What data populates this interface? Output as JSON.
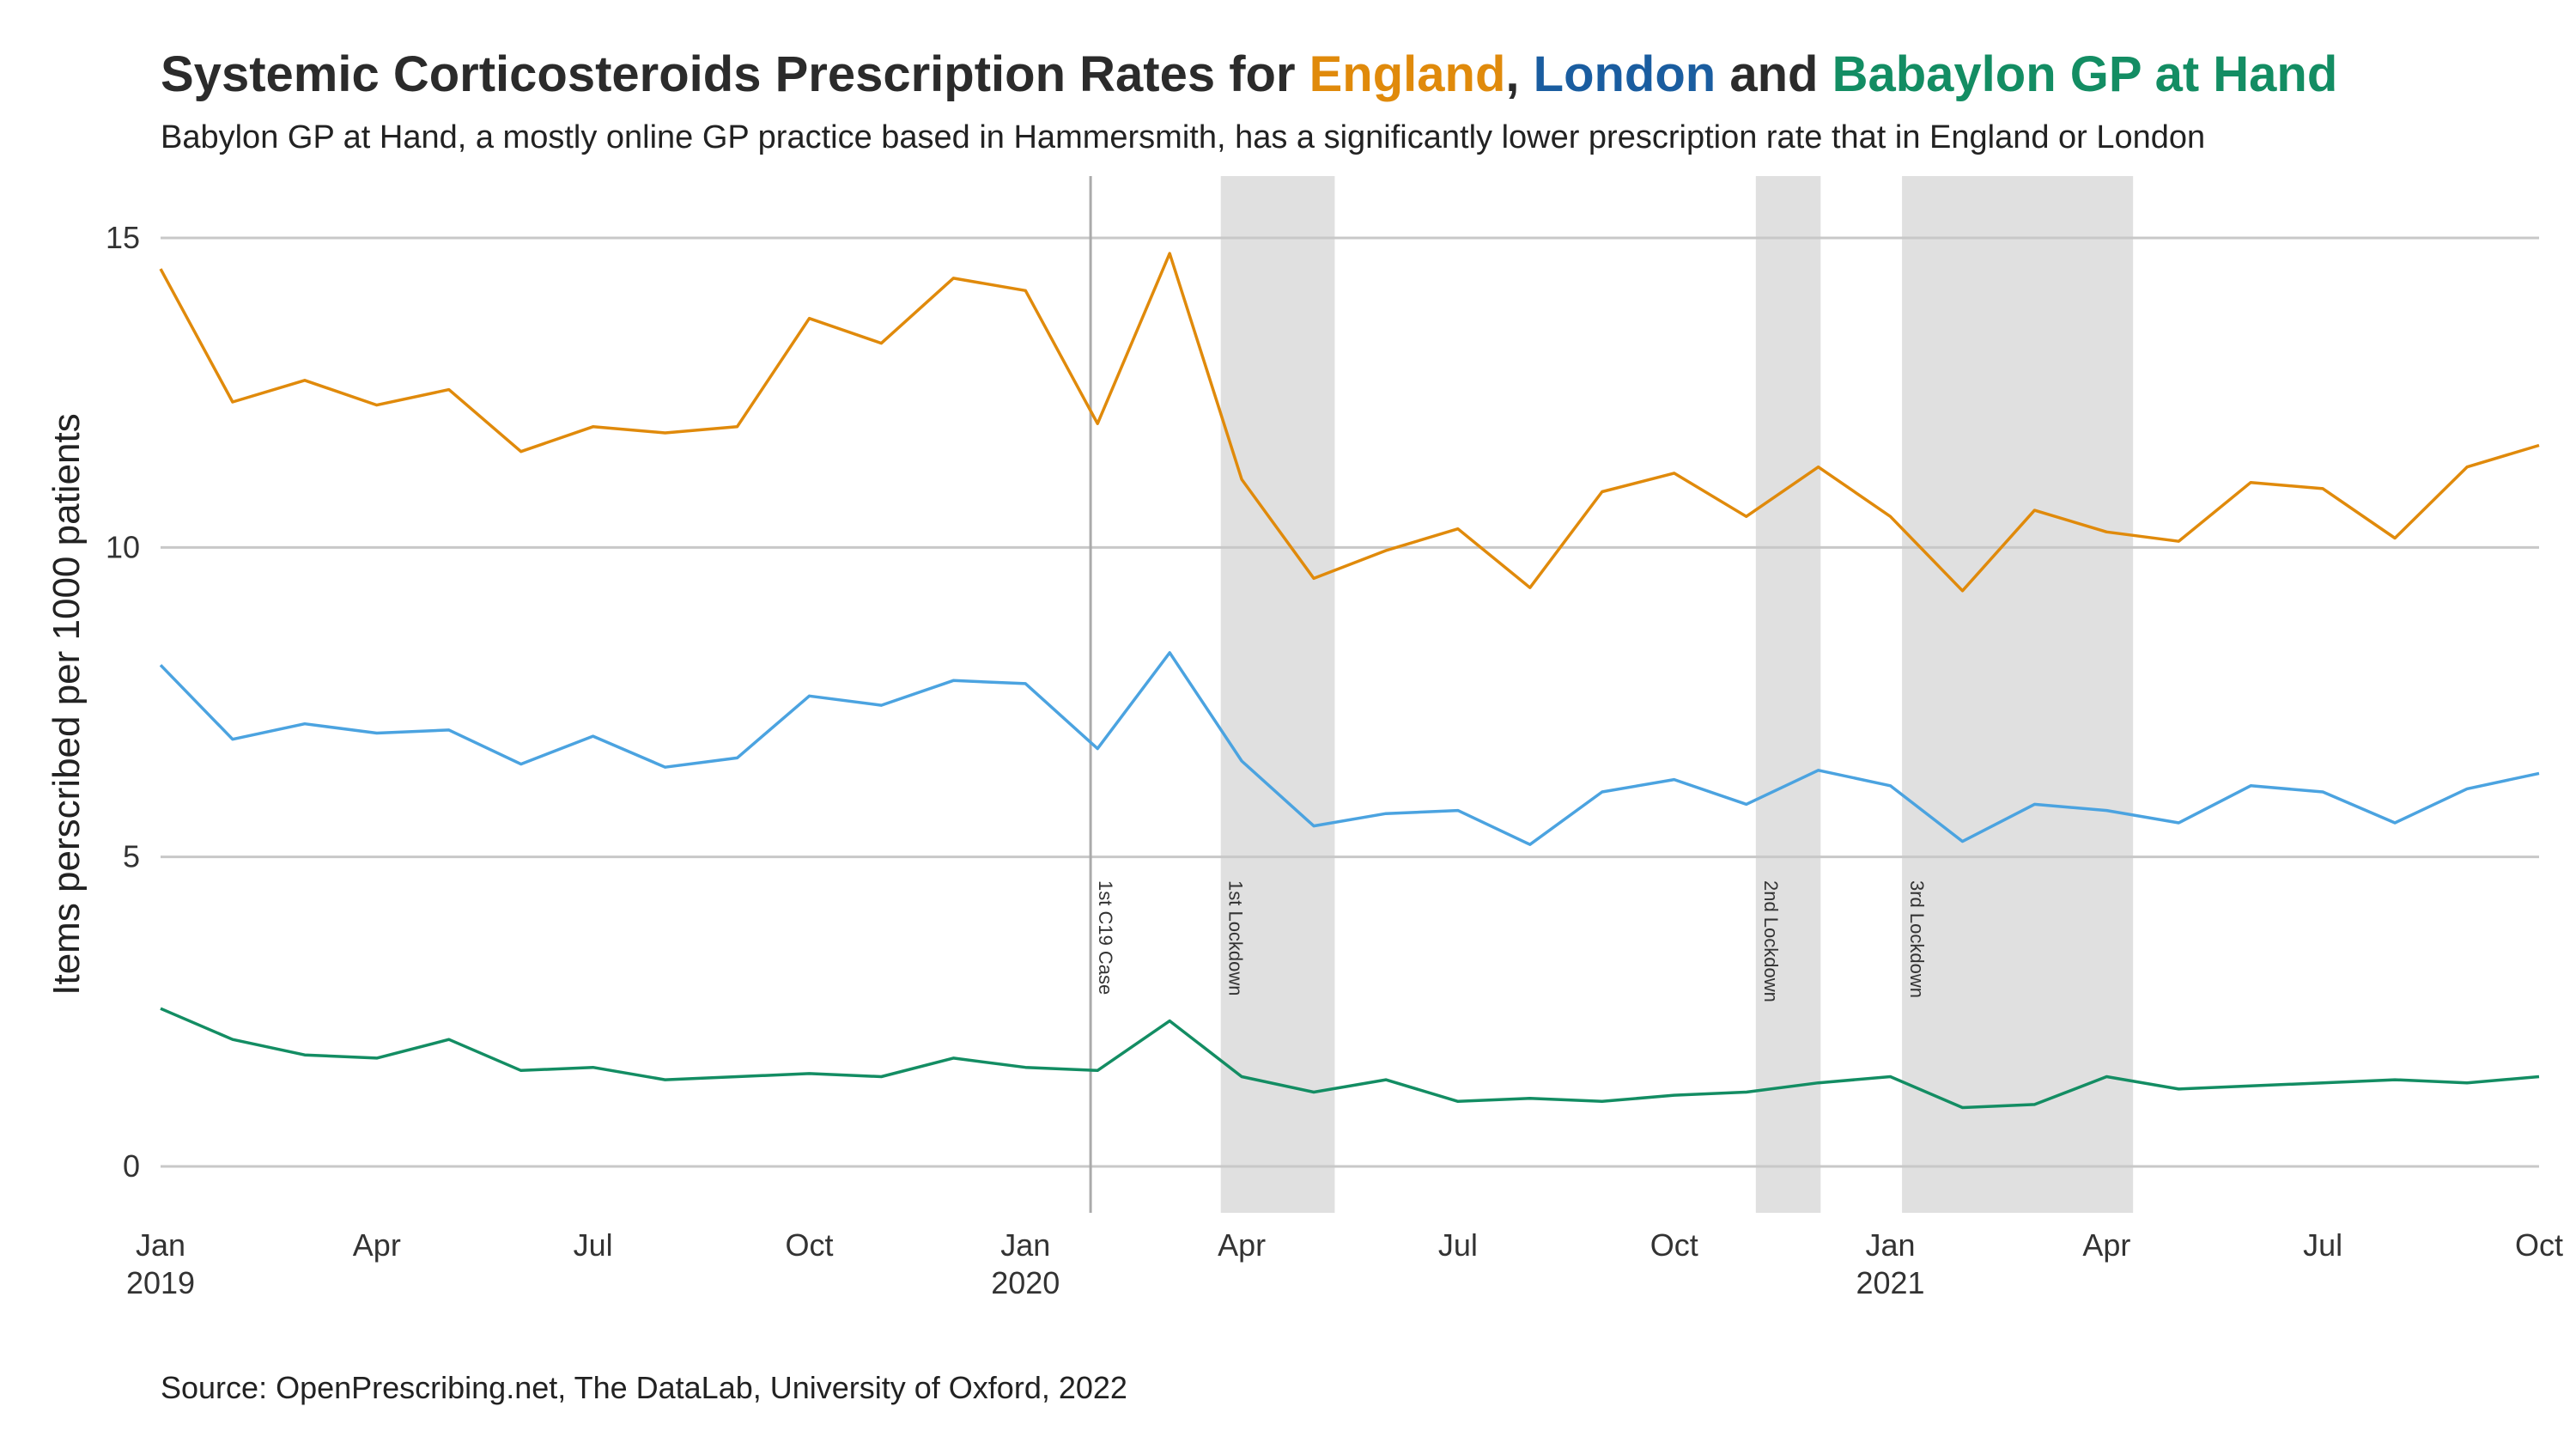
{
  "chart_data": {
    "type": "line",
    "title_parts": [
      {
        "text": "Systemic Corticosteroids Prescription Rates for ",
        "color": "#2b2b2b"
      },
      {
        "text": "England",
        "color": "#E08A0B"
      },
      {
        "text": ", ",
        "color": "#2b2b2b"
      },
      {
        "text": "London",
        "color": "#1A5DA0"
      },
      {
        "text": " and ",
        "color": "#2b2b2b"
      },
      {
        "text": "Babaylon GP at Hand",
        "color": "#138D63"
      }
    ],
    "subtitle": "Babylon GP at Hand, a mostly online GP practice based in Hammersmith, has a significantly lower prescription rate that in England or London",
    "ylabel": "Items perscribed per 1000 patients",
    "xlabel": "",
    "caption": "Source: OpenPrescribing.net, The DataLab, University of Oxford, 2022",
    "x_range": [
      "2019-01",
      "2021-10"
    ],
    "ylim": [
      -0.75,
      16
    ],
    "y_ticks": [
      0,
      5,
      10,
      15
    ],
    "y_tick_labels": [
      "0",
      "5",
      "10",
      "15"
    ],
    "x_ticks": [
      {
        "date": "2019-01",
        "label": "Jan",
        "sub": "2019"
      },
      {
        "date": "2019-04",
        "label": "Apr",
        "sub": ""
      },
      {
        "date": "2019-07",
        "label": "Jul",
        "sub": ""
      },
      {
        "date": "2019-10",
        "label": "Oct",
        "sub": ""
      },
      {
        "date": "2020-01",
        "label": "Jan",
        "sub": "2020"
      },
      {
        "date": "2020-04",
        "label": "Apr",
        "sub": ""
      },
      {
        "date": "2020-07",
        "label": "Jul",
        "sub": ""
      },
      {
        "date": "2020-10",
        "label": "Oct",
        "sub": ""
      },
      {
        "date": "2021-01",
        "label": "Jan",
        "sub": "2021"
      },
      {
        "date": "2021-04",
        "label": "Apr",
        "sub": ""
      },
      {
        "date": "2021-07",
        "label": "Jul",
        "sub": ""
      },
      {
        "date": "2021-10",
        "label": "Oct",
        "sub": ""
      }
    ],
    "grid": "horizontal",
    "dates": [
      "2019-01",
      "2019-02",
      "2019-03",
      "2019-04",
      "2019-05",
      "2019-06",
      "2019-07",
      "2019-08",
      "2019-09",
      "2019-10",
      "2019-11",
      "2019-12",
      "2020-01",
      "2020-02",
      "2020-03",
      "2020-04",
      "2020-05",
      "2020-06",
      "2020-07",
      "2020-08",
      "2020-09",
      "2020-10",
      "2020-11",
      "2020-12",
      "2021-01",
      "2021-02",
      "2021-03",
      "2021-04",
      "2021-05",
      "2021-06",
      "2021-07",
      "2021-08",
      "2021-09",
      "2021-10"
    ],
    "series": [
      {
        "name": "England",
        "color": "#E08A0B",
        "values": [
          14.5,
          12.35,
          12.7,
          12.3,
          12.55,
          11.55,
          11.95,
          11.85,
          11.95,
          13.7,
          13.3,
          14.35,
          14.15,
          12.0,
          14.75,
          11.1,
          9.5,
          9.95,
          10.3,
          9.35,
          10.9,
          11.2,
          10.5,
          11.3,
          10.5,
          9.3,
          10.6,
          10.25,
          10.1,
          11.05,
          10.95,
          10.15,
          11.3,
          11.65
        ]
      },
      {
        "name": "London",
        "color": "#4BA3E0",
        "values": [
          8.1,
          6.9,
          7.15,
          7.0,
          7.05,
          6.5,
          6.95,
          6.45,
          6.6,
          7.6,
          7.45,
          7.85,
          7.8,
          6.75,
          8.3,
          6.55,
          5.5,
          5.7,
          5.75,
          5.2,
          6.05,
          6.25,
          5.85,
          6.4,
          6.15,
          5.25,
          5.85,
          5.75,
          5.55,
          6.15,
          6.05,
          5.55,
          6.1,
          6.35
        ]
      },
      {
        "name": "Babaylon GP at Hand",
        "color": "#138D63",
        "values": [
          2.55,
          2.05,
          1.8,
          1.75,
          2.05,
          1.55,
          1.6,
          1.4,
          1.45,
          1.5,
          1.45,
          1.75,
          1.6,
          1.55,
          2.35,
          1.45,
          1.2,
          1.4,
          1.05,
          1.1,
          1.05,
          1.15,
          1.2,
          1.35,
          1.45,
          0.95,
          1.0,
          1.45,
          1.25,
          1.3,
          1.35,
          1.4,
          1.35,
          1.45
        ]
      }
    ],
    "lockdowns": [
      {
        "label": "1st Lockdown",
        "start": "2020-03-23",
        "end": "2020-05-10"
      },
      {
        "label": "2nd Lockdown",
        "start": "2020-11-05",
        "end": "2020-12-02"
      },
      {
        "label": "3rd Lockdown",
        "start": "2021-01-06",
        "end": "2021-04-12"
      }
    ],
    "events": [
      {
        "label": "1st C19 Case",
        "date": "2020-01-29"
      }
    ],
    "colors": {
      "grid": "#c8c8c8",
      "shade": "#e0e0e0",
      "event_line": "#aaaaaa"
    }
  }
}
